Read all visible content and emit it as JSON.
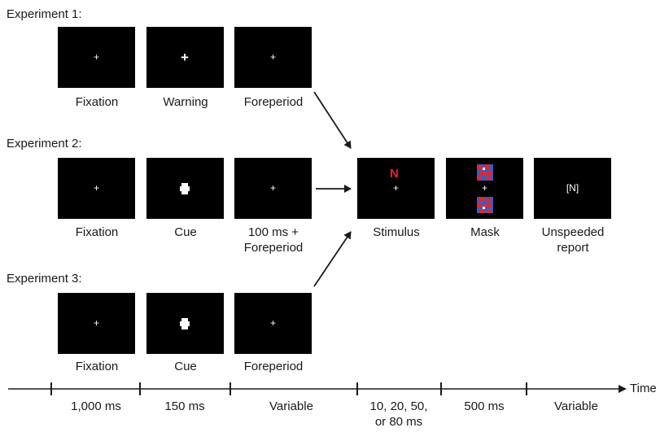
{
  "experiments": [
    {
      "title": "Experiment 1:",
      "captions": [
        "Fixation",
        "Warning",
        "Foreperiod"
      ]
    },
    {
      "title": "Experiment 2:",
      "captions": [
        "Fixation",
        "Cue",
        "100 ms +\nForeperiod"
      ]
    },
    {
      "title": "Experiment 3:",
      "captions": [
        "Fixation",
        "Cue",
        "Foreperiod"
      ]
    }
  ],
  "shared": {
    "captions": [
      "Stimulus",
      "Mask",
      "Unspeeded\nreport"
    ],
    "stimulus_letter": "N",
    "report_text": "[N]",
    "fixation_symbol": "+"
  },
  "timeline": {
    "axis_label": "Time",
    "intervals": [
      "1,000 ms",
      "150 ms",
      "Variable",
      "10, 20, 50,\nor 80 ms",
      "500 ms",
      "Variable"
    ]
  },
  "colors": {
    "screen": "#000000",
    "stimulus_letter": "#e8242b",
    "mask_red": "#e8242b",
    "mask_blue": "#3a5bbf"
  }
}
